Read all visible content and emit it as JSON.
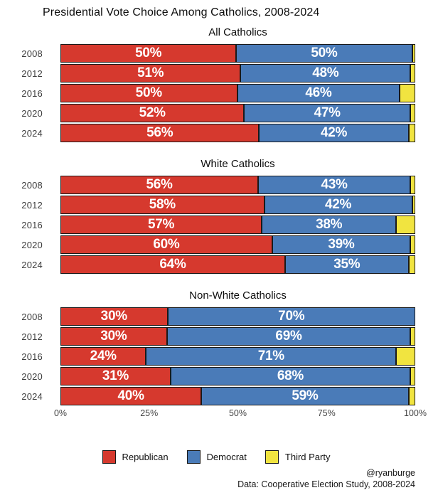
{
  "title": "Presidential Vote Choice Among Catholics, 2008-2024",
  "colors": {
    "republican": "#d6392e",
    "democrat": "#4a7bb8",
    "third_party": "#f1e440",
    "border": "#191919"
  },
  "x_axis": {
    "ticks": [
      "0%",
      "25%",
      "50%",
      "75%",
      "100%"
    ],
    "range": [
      0,
      100
    ]
  },
  "legend": [
    {
      "label": "Republican",
      "color": "#d6392e"
    },
    {
      "label": "Democrat",
      "color": "#4a7bb8"
    },
    {
      "label": "Third Party",
      "color": "#f1e440"
    }
  ],
  "credit": "@ryanburge",
  "source": "Data: Cooperative Election Study, 2008-2024",
  "chart_data": [
    {
      "type": "bar",
      "orientation": "horizontal",
      "stacked": true,
      "title": "All Catholics",
      "categories": [
        "2008",
        "2012",
        "2016",
        "2020",
        "2024"
      ],
      "xlim": [
        0,
        100
      ],
      "series": [
        {
          "name": "Republican",
          "color": "#d6392e",
          "values": [
            50,
            51,
            50,
            52,
            56
          ]
        },
        {
          "name": "Democrat",
          "color": "#4a7bb8",
          "values": [
            50,
            48,
            46,
            47,
            42
          ]
        },
        {
          "name": "Third Party",
          "color": "#f1e440",
          "values": [
            0.5,
            1,
            4,
            1,
            1.5
          ]
        }
      ]
    },
    {
      "type": "bar",
      "orientation": "horizontal",
      "stacked": true,
      "title": "White Catholics",
      "categories": [
        "2008",
        "2012",
        "2016",
        "2020",
        "2024"
      ],
      "xlim": [
        0,
        100
      ],
      "series": [
        {
          "name": "Republican",
          "color": "#d6392e",
          "values": [
            56,
            58,
            57,
            60,
            64
          ]
        },
        {
          "name": "Democrat",
          "color": "#4a7bb8",
          "values": [
            43,
            42,
            38,
            39,
            35
          ]
        },
        {
          "name": "Third Party",
          "color": "#f1e440",
          "values": [
            1,
            0.5,
            5,
            1,
            1.5
          ]
        }
      ]
    },
    {
      "type": "bar",
      "orientation": "horizontal",
      "stacked": true,
      "title": "Non-White Catholics",
      "categories": [
        "2008",
        "2012",
        "2016",
        "2020",
        "2024"
      ],
      "xlim": [
        0,
        100
      ],
      "series": [
        {
          "name": "Republican",
          "color": "#d6392e",
          "values": [
            30,
            30,
            24,
            31,
            40
          ]
        },
        {
          "name": "Democrat",
          "color": "#4a7bb8",
          "values": [
            70,
            69,
            71,
            68,
            59
          ]
        },
        {
          "name": "Third Party",
          "color": "#f1e440",
          "values": [
            0,
            1,
            5,
            1,
            1.5
          ]
        }
      ]
    }
  ]
}
